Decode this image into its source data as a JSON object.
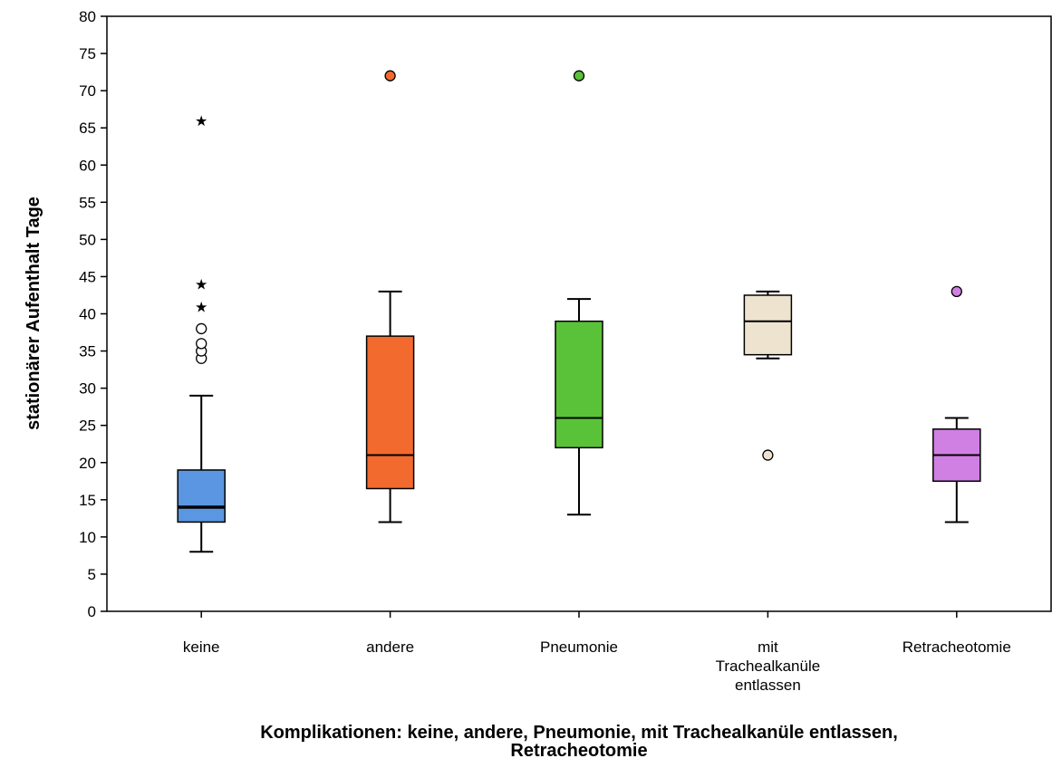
{
  "chart_data": {
    "type": "boxplot",
    "ylabel": "stationärer Aufenthalt Tage",
    "xlabel_lines": [
      "Komplikationen: keine, andere, Pneumonie, mit Trachealkanüle entlassen,",
      "Retracheotomie"
    ],
    "ylim": [
      0,
      80
    ],
    "yticks": [
      0,
      5,
      10,
      15,
      20,
      25,
      30,
      35,
      40,
      45,
      50,
      55,
      60,
      65,
      70,
      75,
      80
    ],
    "grid": false,
    "categories": [
      {
        "label_lines": [
          "keine"
        ],
        "color": "#5b96e3",
        "whisker_low": 8,
        "q1": 12,
        "median": 14,
        "q3": 19,
        "whisker_high": 29,
        "outliers": [
          34,
          35,
          36,
          38
        ],
        "extremes": [
          41,
          44,
          66
        ]
      },
      {
        "label_lines": [
          "andere"
        ],
        "color": "#f26a2e",
        "whisker_low": 12,
        "q1": 16.5,
        "median": 21,
        "q3": 37,
        "whisker_high": 43,
        "outliers": [
          72
        ],
        "extremes": []
      },
      {
        "label_lines": [
          "Pneumonie"
        ],
        "color": "#5ac238",
        "whisker_low": 13,
        "q1": 22,
        "median": 26,
        "q3": 39,
        "whisker_high": 42,
        "outliers": [
          72
        ],
        "extremes": []
      },
      {
        "label_lines": [
          "mit",
          "Trachealkanüle",
          "entlassen"
        ],
        "color": "#ede3cf",
        "whisker_low": 34,
        "q1": 34.5,
        "median": 39,
        "q3": 42.5,
        "whisker_high": 43,
        "outliers": [
          21
        ],
        "extremes": []
      },
      {
        "label_lines": [
          "Retracheotomie"
        ],
        "color": "#d080e3",
        "whisker_low": 12,
        "q1": 17.5,
        "median": 21,
        "q3": 24.5,
        "whisker_high": 26,
        "outliers": [
          43
        ],
        "extremes": []
      }
    ]
  }
}
